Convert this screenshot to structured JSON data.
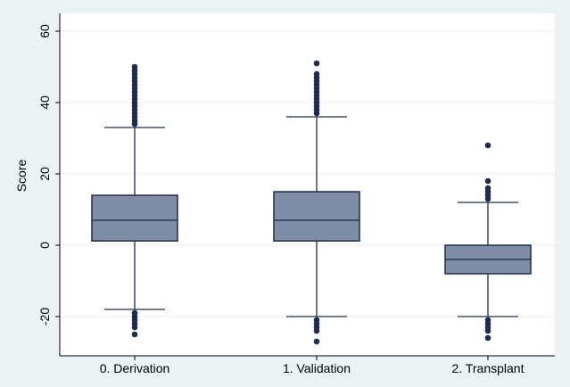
{
  "chart_data": {
    "type": "box",
    "ylabel": "Score",
    "ylim": [
      -30,
      65
    ],
    "y_ticks": [
      -20,
      0,
      20,
      40,
      60
    ],
    "y_tick_labels": [
      "-20",
      "0",
      "20",
      "40",
      "60"
    ],
    "grid": true,
    "categories": [
      "0. Derivation",
      "1. Validation",
      "2. Transplant"
    ],
    "boxes": [
      {
        "category": "0. Derivation",
        "q1": 1.2,
        "median": 7,
        "q3": 14,
        "whisker_low": -18,
        "whisker_high": 33,
        "outliers_high": [
          34,
          35,
          36,
          37,
          38,
          39,
          40,
          41,
          42,
          43,
          44,
          45,
          46,
          47,
          48,
          49,
          50
        ],
        "outliers_low": [
          -19,
          -20,
          -21,
          -22,
          -23,
          -25
        ]
      },
      {
        "category": "1. Validation",
        "q1": 1.2,
        "median": 7,
        "q3": 15,
        "whisker_low": -20,
        "whisker_high": 36,
        "outliers_high": [
          37,
          38,
          39,
          40,
          41,
          42,
          43,
          44,
          45,
          46,
          47,
          48,
          51
        ],
        "outliers_low": [
          -21,
          -22,
          -23,
          -24,
          -27
        ]
      },
      {
        "category": "2. Transplant",
        "q1": -8,
        "median": -4,
        "q3": 0,
        "whisker_low": -20,
        "whisker_high": 12,
        "outliers_high": [
          13,
          14,
          15,
          16,
          18,
          28
        ],
        "outliers_low": [
          -21,
          -22,
          -23,
          -24,
          -26
        ]
      }
    ],
    "colors": {
      "box_fill": "#7f8ea6",
      "box_stroke": "#1d2c4e",
      "outlier": "#1d2c4e",
      "grid": "#e9eef1",
      "plot_background": "#ffffff",
      "outer_background": "#eaf2f3"
    }
  }
}
